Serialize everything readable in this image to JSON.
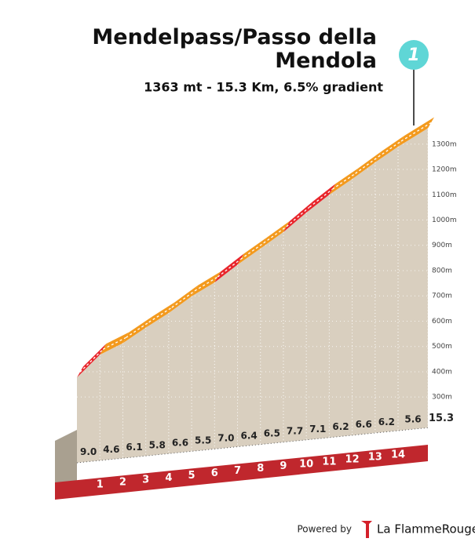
{
  "chart_data": {
    "type": "climb-profile",
    "title": "Mendelpass/Passo della Mendola",
    "subtitle": "1363 mt - 15.3 Km, 6.5% gradient",
    "marker": "1",
    "summit_elevation": 1363,
    "x": [
      1,
      2,
      3,
      4,
      5,
      6,
      7,
      8,
      9,
      10,
      11,
      12,
      13,
      14,
      15.3
    ],
    "values": [
      9.0,
      4.6,
      6.1,
      5.8,
      6.6,
      5.5,
      7.0,
      6.4,
      6.5,
      7.7,
      7.1,
      6.2,
      6.6,
      6.2,
      5.6
    ],
    "value_labels": [
      "9.0",
      "4.6",
      "6.1",
      "5.8",
      "6.6",
      "5.5",
      "7.0",
      "6.4",
      "6.5",
      "7.7",
      "7.1",
      "6.2",
      "6.6",
      "6.2",
      "5.6"
    ],
    "colors": [
      "#e8262c",
      "#f39a1e",
      "#f39a1e",
      "#f39a1e",
      "#f39a1e",
      "#f39a1e",
      "#e8262c",
      "#f39a1e",
      "#f39a1e",
      "#e8262c",
      "#e8262c",
      "#f39a1e",
      "#f39a1e",
      "#f39a1e",
      "#f39a1e"
    ],
    "xlim": [
      0,
      15.3
    ],
    "ylim": [
      40,
      1380
    ],
    "yticks": [
      {
        "value": 300,
        "label": "300m"
      },
      {
        "value": 400,
        "label": "400m"
      },
      {
        "value": 500,
        "label": "500m"
      },
      {
        "value": 600,
        "label": "600m"
      },
      {
        "value": 700,
        "label": "700m"
      },
      {
        "value": 800,
        "label": "800m"
      },
      {
        "value": 900,
        "label": "900m"
      },
      {
        "value": 1000,
        "label": "1000m"
      },
      {
        "value": 1100,
        "label": "1100m"
      },
      {
        "value": 1200,
        "label": "1200m"
      },
      {
        "value": 1300,
        "label": "1300m"
      }
    ],
    "footer": {
      "powered": "Powered by",
      "brand": "La FlammeRouge"
    }
  }
}
